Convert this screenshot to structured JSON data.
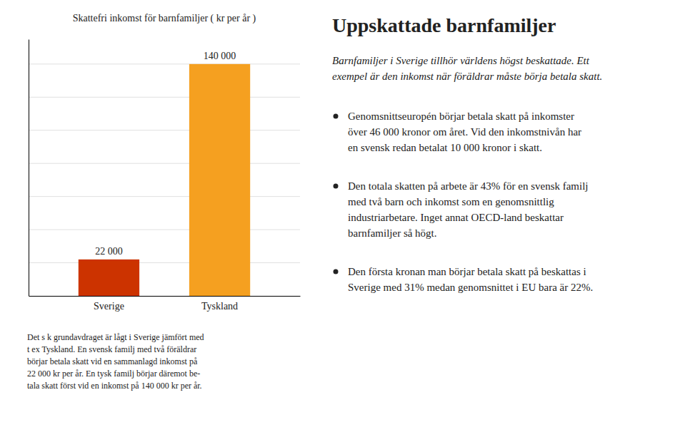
{
  "title": "Uppskattade barnfamiljer",
  "intro": [
    "Barnfamiljer i Sverige tillhör världens högst beskattade. Ett",
    "exempel är den inkomst när föräldrar måste börja betala skatt."
  ],
  "bullet_points": [
    [
      "Genomsnittseuropén börjar betala skatt på inkomster",
      "över 46 000 kronor om året. Vid den inkomstnivån har",
      "en svensk redan betalat 10 000 kronor i skatt."
    ],
    [
      "Den totala skatten på arbete är 43% för en svensk familj",
      "med två barn och inkomst som en genomsnittlig",
      "industriarbetare. Inget annat OECD-land beskattar",
      "barnfamiljer så högt."
    ],
    [
      "Den första kronan man börjar betala skatt på beskattas i",
      "Sverige med 31% medan genomsnittet i EU bara är 22%."
    ]
  ],
  "chart_data": {
    "type": "bar",
    "title": "Skattefri inkomst för barnfamiljer ( kr per år )",
    "categories": [
      "Sverige",
      "Tyskland"
    ],
    "values": [
      22000,
      140000
    ],
    "value_labels": [
      "22 000",
      "140 000"
    ],
    "data_labels": true,
    "colors": [
      "#cc3300",
      "#f5a020"
    ],
    "ylim": [
      0,
      155000
    ],
    "yticks": [
      20000,
      40000,
      60000,
      80000,
      100000,
      120000,
      140000
    ],
    "grid": true,
    "tick_labels": "x",
    "annotations": [
      "Det s k grundavdraget är lågt i Sverige jämfört med",
      "t ex Tyskland. En svensk familj med två föräldrar",
      "börjar betala skatt vid en sammanlagd inkomst på",
      "22 000 kr per år. En tysk familj börjar däremot be-",
      "tala skatt först vid en inkomst på 140 000 kr per år."
    ]
  }
}
